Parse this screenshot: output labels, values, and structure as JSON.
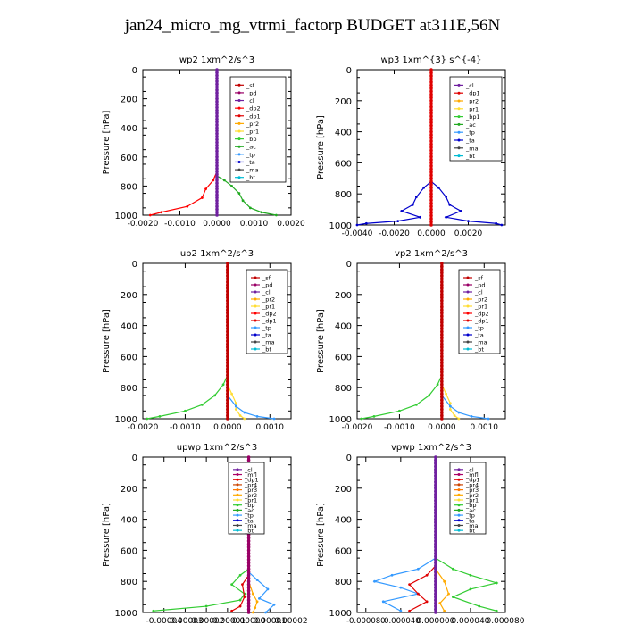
{
  "page": {
    "title": "jan24_micro_mg_vtrmi_factorp  BUDGET at311E,56N"
  },
  "colors": {
    "sf": "#c00000",
    "pd": "#990066",
    "cl": "#7020a0",
    "dp2": "#ff0000",
    "dp1": "#e00000",
    "pr2": "#ffaa00",
    "pr1": "#ffdd33",
    "pr3": "#ff7700",
    "pr4": "#cc4400",
    "bp": "#33cc33",
    "bp1": "#33cc33",
    "ac": "#22aa22",
    "tp": "#3399ff",
    "ta": "#0000cc",
    "ma": "#444444",
    "bt": "#00bcd4",
    "mfl": "#aa0066"
  },
  "chart_data": [
    {
      "type": "line",
      "title": "wp2   1xm^2/s^3",
      "ylabel": "Pressure [hPa]",
      "xlim": [
        -0.002,
        0.002
      ],
      "ylim": [
        0,
        1000
      ],
      "xticks": [
        "-0.0020",
        "-0.0010",
        "0.0000",
        "0.0010",
        "0.0020"
      ],
      "xtick_values": [
        -0.002,
        -0.001,
        0.0,
        0.001,
        0.002
      ],
      "yticks": [
        "0",
        "200",
        "400",
        "600",
        "800",
        "1000"
      ],
      "legend": [
        "_sf",
        "_pd",
        "_cl",
        "_dp2",
        "_dp1",
        "_pr2",
        "_pr1",
        "_bp",
        "_ac",
        "_tp",
        "_ta",
        "_ma",
        "_bt"
      ],
      "legend_keys": [
        "sf",
        "pd",
        "cl",
        "dp2",
        "dp1",
        "pr2",
        "pr1",
        "bp",
        "ac",
        "tp",
        "ta",
        "ma",
        "bt"
      ],
      "series": [
        {
          "key": "dp2",
          "x": [
            0,
            0,
            -0.0001,
            -0.0003,
            -0.0004,
            -0.0008,
            -0.0015,
            -0.0018
          ],
          "y": [
            0,
            700,
            760,
            820,
            880,
            940,
            980,
            1000
          ]
        },
        {
          "key": "ac",
          "x": [
            0,
            0,
            0.0002,
            0.0004,
            0.0006,
            0.0007,
            0.0009,
            0.0012,
            0.0016
          ],
          "y": [
            0,
            730,
            760,
            800,
            850,
            900,
            950,
            980,
            1000
          ]
        },
        {
          "key": "pd",
          "x": [
            0,
            0,
            0,
            0
          ],
          "y": [
            0,
            500,
            900,
            1000
          ]
        },
        {
          "key": "cl",
          "x": [
            0,
            0,
            0,
            0
          ],
          "y": [
            0,
            400,
            800,
            1000
          ]
        }
      ]
    },
    {
      "type": "line",
      "title": "wp3   1xm^{3} s^{-4}",
      "ylabel": "Pressure [hPa]",
      "xlim": [
        -0.004,
        0.004
      ],
      "ylim": [
        0,
        1000
      ],
      "xticks": [
        "-0.0040",
        "-0.0020",
        "0.0000",
        "0.0020"
      ],
      "xtick_values": [
        -0.004,
        -0.002,
        0.0,
        0.002
      ],
      "yticks": [
        "0",
        "200",
        "400",
        "600",
        "800",
        "1000"
      ],
      "legend": [
        "_cl",
        "_dp1",
        "_pr2",
        "_pr1",
        "_bp1",
        "_ac",
        "_tp",
        "_ta",
        "_ma",
        "_bt"
      ],
      "legend_keys": [
        "cl",
        "dp1",
        "pr2",
        "pr1",
        "bp1",
        "ac",
        "tp",
        "ta",
        "ma",
        "bt"
      ],
      "series": [
        {
          "key": "ta",
          "x": [
            0,
            0,
            -0.0004,
            -0.0008,
            -0.001,
            -0.0016,
            -0.0006,
            -0.0018,
            -0.0035,
            -0.004
          ],
          "y": [
            0,
            720,
            760,
            820,
            870,
            910,
            950,
            975,
            990,
            1000
          ]
        },
        {
          "key": "ta",
          "x": [
            0,
            0,
            0.0004,
            0.0008,
            0.001,
            0.0016,
            0.0008,
            0.002,
            0.0035,
            0.0038
          ],
          "y": [
            0,
            720,
            760,
            820,
            870,
            910,
            950,
            975,
            990,
            1000
          ]
        },
        {
          "key": "dp1",
          "x": [
            0,
            0,
            0,
            0
          ],
          "y": [
            0,
            400,
            800,
            1000
          ]
        }
      ]
    },
    {
      "type": "line",
      "title": "up2   1xm^2/s^3",
      "ylabel": "Pressure [hPa]",
      "xlim": [
        -0.002,
        0.0015
      ],
      "ylim": [
        0,
        1000
      ],
      "xticks": [
        "-0.0020",
        "-0.0010",
        "0.0000",
        "0.0010"
      ],
      "xtick_values": [
        -0.002,
        -0.001,
        0.0,
        0.001
      ],
      "yticks": [
        "0",
        "200",
        "400",
        "600",
        "800",
        "1000"
      ],
      "legend": [
        "_sf",
        "_pd",
        "_cl",
        "_pr2",
        "_pr1",
        "_dp2",
        "_dp1",
        "_tp",
        "_ta",
        "_ma",
        "_bt"
      ],
      "legend_keys": [
        "sf",
        "pd",
        "cl",
        "pr2",
        "pr1",
        "dp2",
        "dp1",
        "tp",
        "ta",
        "ma",
        "bt"
      ],
      "series": [
        {
          "key": "bp",
          "x": [
            0,
            0,
            -0.0001,
            -0.0003,
            -0.0006,
            -0.001,
            -0.0016,
            -0.0019
          ],
          "y": [
            0,
            720,
            780,
            850,
            910,
            950,
            985,
            1000
          ]
        },
        {
          "key": "pr1",
          "x": [
            0,
            0,
            0.0001,
            0.0002,
            0.0002,
            0.0003,
            0.0004
          ],
          "y": [
            0,
            780,
            840,
            900,
            940,
            980,
            1000
          ]
        },
        {
          "key": "tp",
          "x": [
            0,
            0,
            0.0002,
            0.0004,
            0.0007,
            0.0011
          ],
          "y": [
            0,
            850,
            920,
            960,
            985,
            1000
          ]
        },
        {
          "key": "sf",
          "x": [
            0,
            0,
            0,
            0
          ],
          "y": [
            0,
            400,
            800,
            1000
          ]
        }
      ]
    },
    {
      "type": "line",
      "title": "vp2   1xm^2/s^3",
      "ylabel": "Pressure [hPa]",
      "xlim": [
        -0.002,
        0.0015
      ],
      "ylim": [
        0,
        1000
      ],
      "xticks": [
        "-0.0020",
        "-0.0010",
        "0.0000",
        "0.0010"
      ],
      "xtick_values": [
        -0.002,
        -0.001,
        0.0,
        0.001
      ],
      "yticks": [
        "0",
        "200",
        "400",
        "600",
        "800",
        "1000"
      ],
      "legend": [
        "_sf",
        "_pd",
        "_cl",
        "_pr2",
        "_pr1",
        "_dp2",
        "_dp1",
        "_tp",
        "_ta",
        "_ma",
        "_bt"
      ],
      "legend_keys": [
        "sf",
        "pd",
        "cl",
        "pr2",
        "pr1",
        "dp2",
        "dp1",
        "tp",
        "ta",
        "ma",
        "bt"
      ],
      "series": [
        {
          "key": "bp",
          "x": [
            0,
            0,
            -0.0001,
            -0.0003,
            -0.0006,
            -0.001,
            -0.0016,
            -0.0019
          ],
          "y": [
            0,
            720,
            780,
            850,
            910,
            950,
            985,
            1000
          ]
        },
        {
          "key": "pr1",
          "x": [
            0,
            0,
            0.0001,
            0.0002,
            0.0002,
            0.0003,
            0.0004
          ],
          "y": [
            0,
            780,
            840,
            900,
            940,
            980,
            1000
          ]
        },
        {
          "key": "tp",
          "x": [
            0,
            0,
            0.0002,
            0.0004,
            0.0007,
            0.0011
          ],
          "y": [
            0,
            850,
            920,
            960,
            985,
            1000
          ]
        },
        {
          "key": "sf",
          "x": [
            0,
            0,
            0,
            0
          ],
          "y": [
            0,
            400,
            800,
            1000
          ]
        }
      ]
    },
    {
      "type": "line",
      "title": "upwp   1xm^2/s^3",
      "ylabel": "Pressure [hPa]",
      "xlim": [
        -5e-05,
        2e-05
      ],
      "ylim": [
        0,
        1000
      ],
      "xticks": [
        "-0.00004",
        "-0.00003",
        "-0.00002",
        "-0.00001",
        "0.00000",
        "0.00001",
        "0.00002"
      ],
      "xtick_values": [
        -4e-05,
        -3e-05,
        -2e-05,
        -1e-05,
        0.0,
        1e-05,
        2e-05
      ],
      "yticks": [
        "0",
        "200",
        "400",
        "600",
        "800",
        "1000"
      ],
      "legend": [
        "_cl",
        "_mfl",
        "_dp1",
        "_pr4",
        "_pr3",
        "_pr2",
        "_pr1",
        "_bp",
        "_ac",
        "_tp",
        "_ta",
        "_ma",
        "_bt"
      ],
      "legend_keys": [
        "cl",
        "mfl",
        "dp1",
        "pr4",
        "pr3",
        "pr2",
        "pr1",
        "bp",
        "ac",
        "tp",
        "ta",
        "ma",
        "bt"
      ],
      "series": [
        {
          "key": "bp",
          "x": [
            0,
            0,
            -4e-06,
            -8e-06,
            -2e-06,
            -4e-06,
            -2e-05,
            -4.5e-05
          ],
          "y": [
            0,
            720,
            760,
            820,
            880,
            920,
            960,
            990
          ]
        },
        {
          "key": "tp",
          "x": [
            0,
            0,
            4e-06,
            9e-06,
            5e-06,
            1.2e-05,
            8e-06
          ],
          "y": [
            0,
            740,
            790,
            850,
            910,
            950,
            1000
          ]
        },
        {
          "key": "dp1",
          "x": [
            0,
            0,
            -3e-06,
            -2e-06,
            -4e-06,
            -8e-06
          ],
          "y": [
            0,
            760,
            820,
            900,
            960,
            990
          ]
        },
        {
          "key": "pr2",
          "x": [
            0,
            0,
            2e-06,
            4e-06,
            3e-06,
            2e-06
          ],
          "y": [
            0,
            800,
            880,
            930,
            970,
            1000
          ]
        },
        {
          "key": "pd",
          "x": [
            0,
            0,
            0,
            0
          ],
          "y": [
            0,
            400,
            800,
            1000
          ]
        }
      ]
    },
    {
      "type": "line",
      "title": "vpwp   1xm^2/s^3",
      "ylabel": "Pressure [hPa]",
      "xlim": [
        -9e-05,
        8e-05
      ],
      "ylim": [
        0,
        1000
      ],
      "xticks": [
        "-0.000080",
        "-0.000040",
        "0.000000",
        "0.000040",
        "0.000080"
      ],
      "xtick_values": [
        -8e-05,
        -4e-05,
        0.0,
        4e-05,
        8e-05
      ],
      "yticks": [
        "0",
        "200",
        "400",
        "600",
        "800",
        "1000"
      ],
      "legend": [
        "_cl",
        "_mfl",
        "_dp1",
        "_pr4",
        "_pr3",
        "_pr2",
        "_pr1",
        "_bp",
        "_ac",
        "_tp",
        "_ta",
        "_ma",
        "_bt"
      ],
      "legend_keys": [
        "cl",
        "mfl",
        "dp1",
        "pr4",
        "pr3",
        "pr2",
        "pr1",
        "bp",
        "ac",
        "tp",
        "ta",
        "ma",
        "bt"
      ],
      "series": [
        {
          "key": "tp",
          "x": [
            0,
            0,
            -2e-05,
            -5e-05,
            -7e-05,
            -4e-05,
            -2e-05,
            -6e-05,
            -4e-05
          ],
          "y": [
            0,
            650,
            720,
            760,
            800,
            840,
            880,
            930,
            990
          ]
        },
        {
          "key": "bp",
          "x": [
            0,
            0,
            2e-05,
            4e-05,
            7e-05,
            4e-05,
            2e-05,
            5e-05,
            7e-05
          ],
          "y": [
            0,
            650,
            720,
            760,
            810,
            850,
            900,
            960,
            990
          ]
        },
        {
          "key": "dp1",
          "x": [
            0,
            0,
            -1e-05,
            -3e-05,
            -2e-05,
            -1e-05,
            -3e-05
          ],
          "y": [
            0,
            700,
            760,
            820,
            880,
            930,
            990
          ]
        },
        {
          "key": "pr2",
          "x": [
            0,
            0,
            1e-05,
            1.5e-05,
            5e-06,
            1e-05
          ],
          "y": [
            0,
            720,
            800,
            880,
            940,
            990
          ]
        },
        {
          "key": "cl",
          "x": [
            0,
            0,
            0,
            0
          ],
          "y": [
            0,
            400,
            800,
            1000
          ]
        }
      ]
    }
  ]
}
